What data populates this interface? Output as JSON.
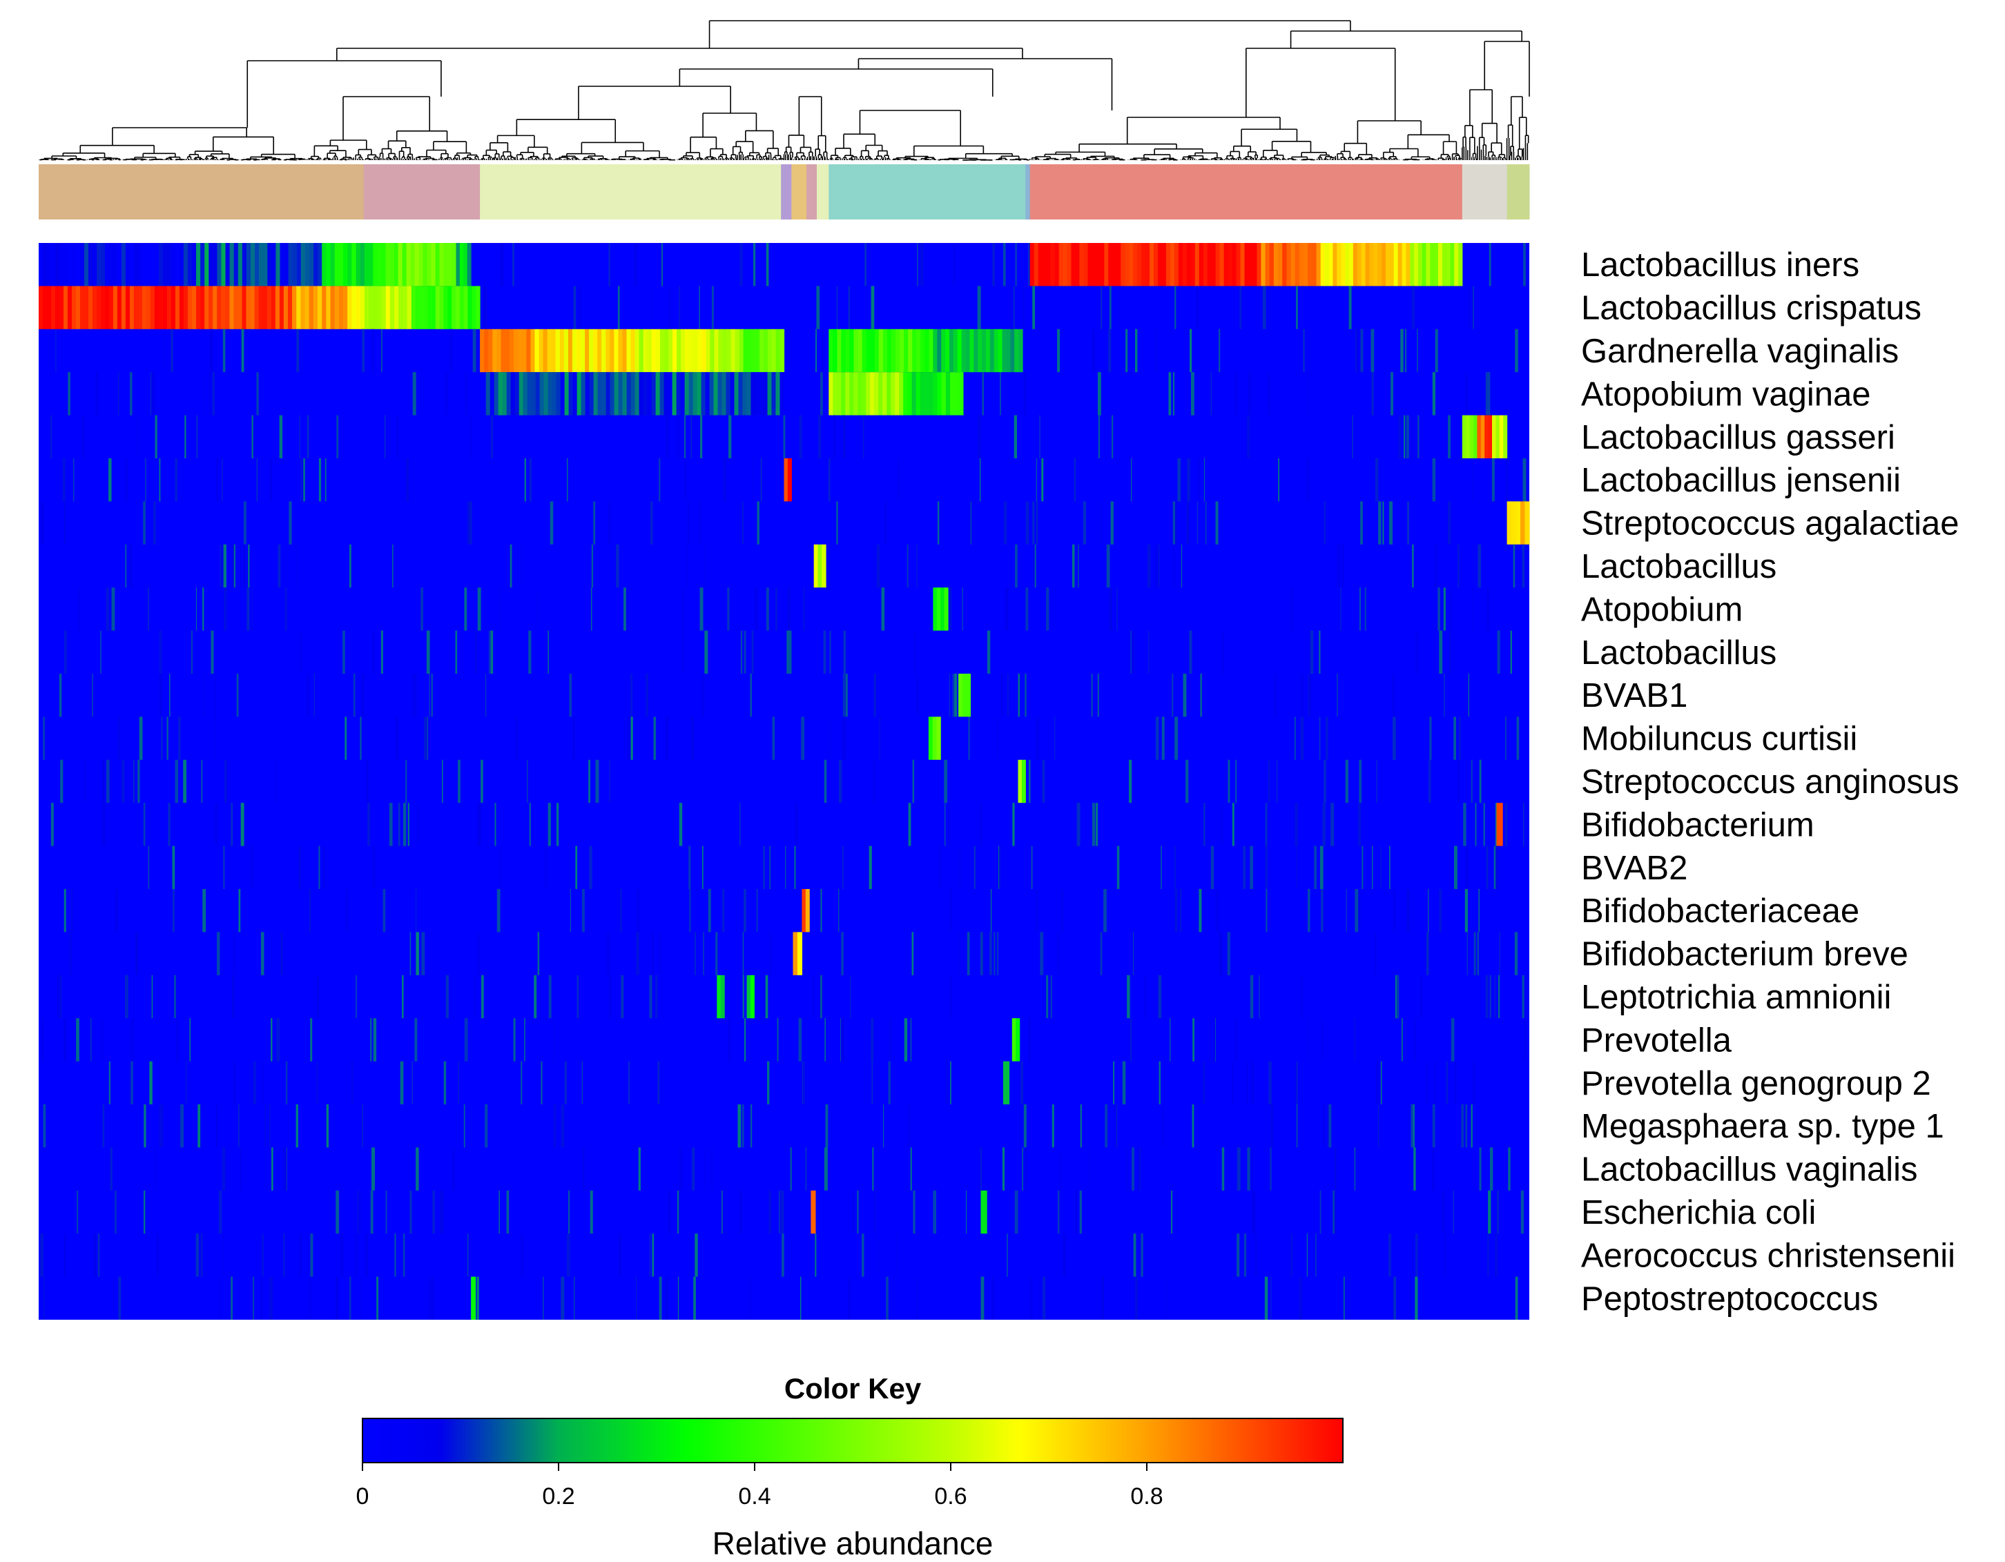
{
  "chart_data": {
    "type": "heatmap",
    "title": "",
    "row_labels": [
      "Lactobacillus iners",
      "Lactobacillus crispatus",
      "Gardnerella vaginalis",
      "Atopobium vaginae",
      "Lactobacillus gasseri",
      "Lactobacillus jensenii",
      "Streptococcus agalactiae",
      "Lactobacillus",
      "Atopobium",
      "Lactobacillus",
      "BVAB1",
      "Mobiluncus curtisii",
      "Streptococcus anginosus",
      "Bifidobacterium",
      "BVAB2",
      "Bifidobacteriaceae",
      "Bifidobacterium breve",
      "Leptotrichia amnionii",
      "Prevotella",
      "Prevotella genogroup 2",
      "Megasphaera sp. type 1",
      "Lactobacillus vaginalis",
      "Escherichia coli",
      "Aerococcus christensenii",
      "Peptostreptococcus"
    ],
    "value_range": [
      0,
      1
    ],
    "cluster_groups": [
      {
        "color": "#D9B486",
        "span": [
          0.0,
          0.218
        ]
      },
      {
        "color": "#D4A3AD",
        "span": [
          0.218,
          0.296
        ]
      },
      {
        "color": "#E5F1B9",
        "span": [
          0.296,
          0.498
        ]
      },
      {
        "color": "#B39BD6",
        "span": [
          0.498,
          0.505
        ]
      },
      {
        "color": "#E8C47A",
        "span": [
          0.505,
          0.515
        ]
      },
      {
        "color": "#D4A3AD",
        "span": [
          0.515,
          0.522
        ]
      },
      {
        "color": "#E5F1B9",
        "span": [
          0.522,
          0.53
        ]
      },
      {
        "color": "#8ED5CB",
        "span": [
          0.53,
          662
        ]
      },
      {
        "color": "#8AB4D6",
        "span": [
          0.662,
          0.665
        ]
      },
      {
        "color": "#E8877E",
        "span": [
          0.665,
          0.955
        ]
      },
      {
        "color": "#DCDAD0",
        "span": [
          0.955,
          0.985
        ]
      },
      {
        "color": "#C9D98E",
        "span": [
          0.985,
          1.0
        ]
      }
    ],
    "row_blocks": [
      [
        [
          0.0,
          0.1,
          0.05
        ],
        [
          0.1,
          0.19,
          0.12
        ],
        [
          0.19,
          0.23,
          0.3
        ],
        [
          0.23,
          0.28,
          0.45
        ],
        [
          0.28,
          0.29,
          0.25
        ],
        [
          0.665,
          0.82,
          0.98
        ],
        [
          0.82,
          0.86,
          0.85
        ],
        [
          0.86,
          0.92,
          0.72
        ],
        [
          0.92,
          0.955,
          0.55
        ]
      ],
      [
        [
          0.0,
          0.1,
          0.98
        ],
        [
          0.1,
          0.17,
          0.92
        ],
        [
          0.17,
          0.21,
          0.78
        ],
        [
          0.21,
          0.25,
          0.6
        ],
        [
          0.25,
          0.296,
          0.4
        ]
      ],
      [
        [
          0.296,
          0.33,
          0.85
        ],
        [
          0.33,
          0.4,
          0.72
        ],
        [
          0.4,
          0.47,
          0.62
        ],
        [
          0.47,
          0.5,
          0.48
        ],
        [
          0.53,
          0.6,
          0.4
        ],
        [
          0.6,
          0.66,
          0.25
        ]
      ],
      [
        [
          0.3,
          0.5,
          0.12
        ],
        [
          0.53,
          0.58,
          0.55
        ],
        [
          0.58,
          0.62,
          0.32
        ]
      ],
      [
        [
          0.955,
          0.965,
          0.5
        ],
        [
          0.965,
          0.975,
          0.9
        ],
        [
          0.975,
          0.985,
          0.6
        ]
      ],
      [
        [
          0.5,
          0.505,
          0.95
        ]
      ],
      [
        [
          0.985,
          1.0,
          0.75
        ]
      ],
      [
        [
          0.52,
          0.528,
          0.6
        ]
      ],
      [
        [
          0.6,
          0.61,
          0.38
        ]
      ],
      [],
      [
        [
          0.617,
          0.625,
          0.38
        ]
      ],
      [
        [
          0.597,
          0.605,
          0.42
        ]
      ],
      [
        [
          0.657,
          0.662,
          0.5
        ]
      ],
      [
        [
          0.978,
          0.982,
          0.95
        ]
      ],
      [],
      [
        [
          0.512,
          0.517,
          0.85
        ]
      ],
      [
        [
          0.506,
          0.512,
          0.75
        ]
      ],
      [
        [
          0.455,
          0.46,
          0.3
        ],
        [
          0.475,
          0.48,
          0.3
        ]
      ],
      [
        [
          0.653,
          0.658,
          0.35
        ]
      ],
      [
        [
          0.647,
          0.651,
          0.25
        ]
      ],
      [],
      [],
      [
        [
          0.518,
          0.521,
          0.95
        ],
        [
          0.632,
          0.636,
          0.35
        ]
      ],
      [],
      [
        [
          0.29,
          0.293,
          0.3
        ]
      ]
    ],
    "color_key": {
      "title": "Color Key",
      "xlabel": "Relative abundance",
      "ticks": [
        "0",
        "0.2",
        "0.4",
        "0.6",
        "0.8"
      ],
      "tick_values": [
        0,
        0.2,
        0.4,
        0.6,
        0.8
      ],
      "range": [
        0,
        1
      ],
      "colors": [
        "#0000FF",
        "#00FF00",
        "#FFFF00",
        "#FF0000"
      ]
    }
  }
}
